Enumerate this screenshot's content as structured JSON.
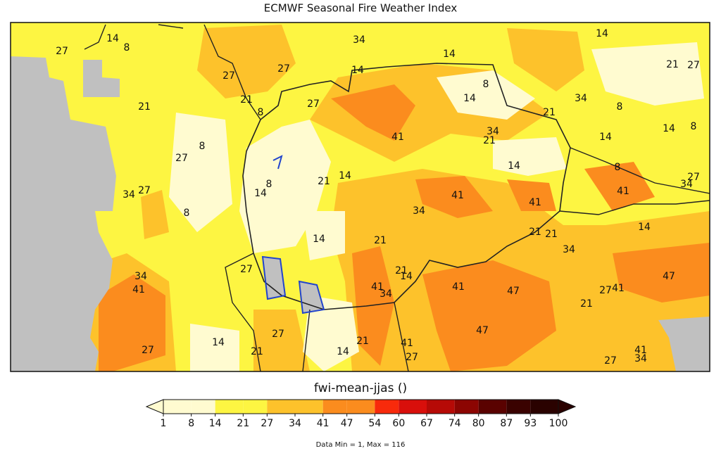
{
  "title": "ECMWF Seasonal Fire Weather Index",
  "contour_labels": [
    27,
    14,
    8,
    34,
    14,
    21,
    27,
    27,
    27,
    14,
    14,
    21,
    8,
    27,
    14,
    8,
    41,
    34,
    21,
    21,
    34,
    8,
    14,
    8,
    21,
    27,
    8,
    14,
    8,
    21,
    14,
    8,
    14,
    14,
    41,
    41,
    41,
    27,
    34,
    27,
    34,
    8,
    34,
    14,
    21,
    21,
    34,
    14,
    21,
    27,
    34,
    41,
    21,
    14,
    41,
    34,
    41,
    47,
    27,
    41,
    47,
    21,
    47,
    27,
    14,
    21,
    14,
    21,
    41,
    27,
    27,
    41,
    34,
    27
  ],
  "colorbar": {
    "label": "fwi-mean-jjas ()",
    "ticks": [
      1,
      8,
      14,
      21,
      27,
      34,
      41,
      47,
      54,
      60,
      67,
      74,
      80,
      87,
      93,
      100
    ],
    "colors": [
      "#fffbd0",
      "#fffbd0",
      "#fdf542",
      "#fdf542",
      "#fdc22b",
      "#fdc22b",
      "#fb8c1e",
      "#fb8c1e",
      "#f82a0b",
      "#d90f0b",
      "#b60a06",
      "#8c0502",
      "#5a0200",
      "#3a0200",
      "#2a0200"
    ],
    "under_color": "#fffbd0",
    "over_color": "#2a0200"
  },
  "footer": "Data Min = 1, Max = 116"
}
